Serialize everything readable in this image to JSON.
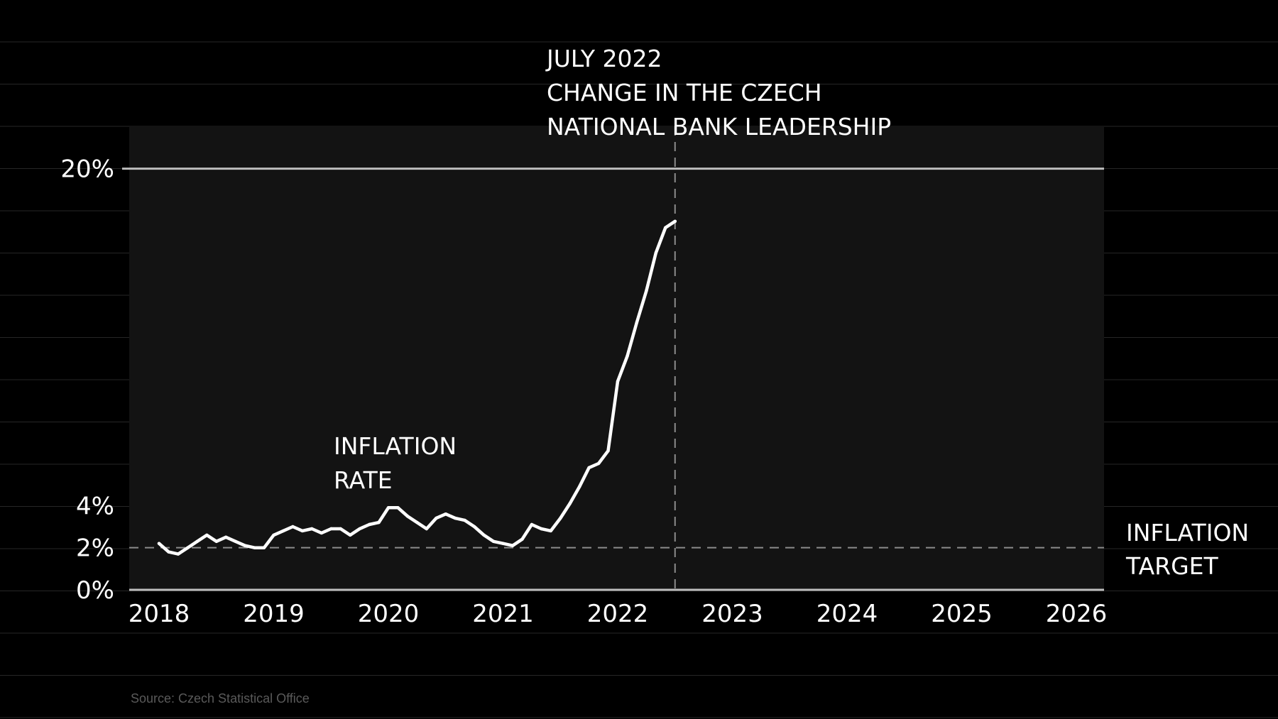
{
  "chart_data": {
    "type": "line",
    "series": [
      {
        "values": [
          [
            "2018-01",
            2.2
          ],
          [
            "2018-02",
            1.8
          ],
          [
            "2018-03",
            1.7
          ],
          [
            "2018-04",
            2.0
          ],
          [
            "2018-05",
            2.3
          ],
          [
            "2018-06",
            2.6
          ],
          [
            "2018-07",
            2.3
          ],
          [
            "2018-08",
            2.5
          ],
          [
            "2018-09",
            2.3
          ],
          [
            "2018-10",
            2.1
          ],
          [
            "2018-11",
            2.0
          ],
          [
            "2018-12",
            2.0
          ],
          [
            "2019-01",
            2.6
          ],
          [
            "2019-02",
            2.8
          ],
          [
            "2019-03",
            3.0
          ],
          [
            "2019-04",
            2.8
          ],
          [
            "2019-05",
            2.9
          ],
          [
            "2019-06",
            2.7
          ],
          [
            "2019-07",
            2.9
          ],
          [
            "2019-08",
            2.9
          ],
          [
            "2019-09",
            2.6
          ],
          [
            "2019-10",
            2.9
          ],
          [
            "2019-11",
            3.1
          ],
          [
            "2019-12",
            3.2
          ],
          [
            "2020-01",
            3.9
          ],
          [
            "2020-02",
            3.9
          ],
          [
            "2020-03",
            3.5
          ],
          [
            "2020-04",
            3.2
          ],
          [
            "2020-05",
            2.9
          ],
          [
            "2020-06",
            3.4
          ],
          [
            "2020-07",
            3.6
          ],
          [
            "2020-08",
            3.4
          ],
          [
            "2020-09",
            3.3
          ],
          [
            "2020-10",
            3.0
          ],
          [
            "2020-11",
            2.6
          ],
          [
            "2020-12",
            2.3
          ],
          [
            "2021-01",
            2.2
          ],
          [
            "2021-02",
            2.1
          ],
          [
            "2021-03",
            2.4
          ],
          [
            "2021-04",
            3.1
          ],
          [
            "2021-05",
            2.9
          ],
          [
            "2021-06",
            2.8
          ],
          [
            "2021-07",
            3.4
          ],
          [
            "2021-08",
            4.1
          ],
          [
            "2021-09",
            4.9
          ],
          [
            "2021-10",
            5.8
          ],
          [
            "2021-11",
            6.0
          ],
          [
            "2021-12",
            6.6
          ],
          [
            "2022-01",
            9.9
          ],
          [
            "2022-02",
            11.1
          ],
          [
            "2022-03",
            12.7
          ],
          [
            "2022-04",
            14.2
          ],
          [
            "2022-05",
            16.0
          ],
          [
            "2022-06",
            17.2
          ],
          [
            "2022-07",
            17.5
          ]
        ]
      }
    ],
    "x_ticks": [
      "2018",
      "2019",
      "2020",
      "2021",
      "2022",
      "2023",
      "2024",
      "2025",
      "2026"
    ],
    "xlim": [
      "2018-01",
      "2026-07"
    ],
    "y_ticks": [
      {
        "value": 0,
        "label": "0%"
      },
      {
        "value": 2,
        "label": "2%"
      },
      {
        "value": 4,
        "label": "4%"
      },
      {
        "value": 20,
        "label": "20%"
      }
    ],
    "ylim": [
      0,
      20
    ],
    "reference_lines": [
      {
        "axis": "y",
        "value": 2,
        "style": "dashed"
      },
      {
        "axis": "x",
        "value": "2022-07",
        "style": "dashed"
      }
    ],
    "annotations": {
      "event_lines": [
        "JULY 2022",
        "CHANGE IN THE CZECH",
        "NATIONAL BANK LEADERSHIP"
      ],
      "series_label_lines": [
        "INFLATION",
        "RATE"
      ],
      "target_label_lines": [
        "INFLATION",
        "TARGET"
      ]
    },
    "source": "Source: Czech Statistical Office",
    "grid": true
  },
  "colors": {
    "background": "#000000",
    "plot_background": "#131313",
    "line": "#ffffff",
    "gridline": "#262626",
    "axis": "#bdbdbd",
    "dashed": "#8c8c8c",
    "source_text": "#5a5a5a"
  }
}
